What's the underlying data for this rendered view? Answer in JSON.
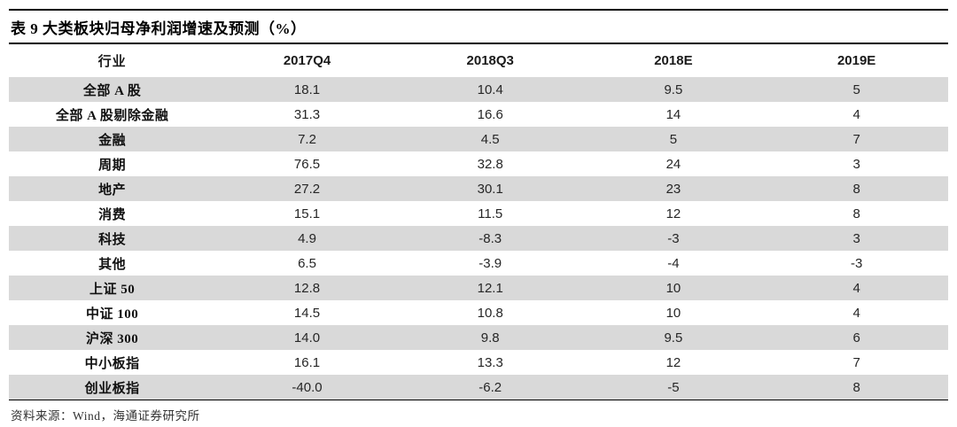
{
  "title": "表 9 大类板块归母净利润增速及预测（%）",
  "source_note": "资料来源：Wind，海通证券研究所",
  "colors": {
    "stripe": "#d9d9d9",
    "rule": "#000000",
    "text": "#262626"
  },
  "table": {
    "columns": [
      "行业",
      "2017Q4",
      "2018Q3",
      "2018E",
      "2019E"
    ],
    "rows": [
      {
        "label": "全部 A 股",
        "values": [
          "18.1",
          "10.4",
          "9.5",
          "5"
        ]
      },
      {
        "label": "全部 A 股剔除金融",
        "values": [
          "31.3",
          "16.6",
          "14",
          "4"
        ]
      },
      {
        "label": "金融",
        "values": [
          "7.2",
          "4.5",
          "5",
          "7"
        ]
      },
      {
        "label": "周期",
        "values": [
          "76.5",
          "32.8",
          "24",
          "3"
        ]
      },
      {
        "label": "地产",
        "values": [
          "27.2",
          "30.1",
          "23",
          "8"
        ]
      },
      {
        "label": "消费",
        "values": [
          "15.1",
          "11.5",
          "12",
          "8"
        ]
      },
      {
        "label": "科技",
        "values": [
          "4.9",
          "-8.3",
          "-3",
          "3"
        ]
      },
      {
        "label": "其他",
        "values": [
          "6.5",
          "-3.9",
          "-4",
          "-3"
        ]
      },
      {
        "label": "上证 50",
        "values": [
          "12.8",
          "12.1",
          "10",
          "4"
        ]
      },
      {
        "label": "中证 100",
        "values": [
          "14.5",
          "10.8",
          "10",
          "4"
        ]
      },
      {
        "label": "沪深 300",
        "values": [
          "14.0",
          "9.8",
          "9.5",
          "6"
        ]
      },
      {
        "label": "中小板指",
        "values": [
          "16.1",
          "13.3",
          "12",
          "7"
        ]
      },
      {
        "label": "创业板指",
        "values": [
          "-40.0",
          "-6.2",
          "-5",
          "8"
        ]
      }
    ]
  },
  "chart_data": {
    "type": "table",
    "title": "表 9 大类板块归母净利润增速及预测（%）",
    "columns": [
      "行业",
      "2017Q4",
      "2018Q3",
      "2018E",
      "2019E"
    ],
    "rows": [
      {
        "行业": "全部 A 股",
        "2017Q4": 18.1,
        "2018Q3": 10.4,
        "2018E": 9.5,
        "2019E": 5
      },
      {
        "行业": "全部 A 股剔除金融",
        "2017Q4": 31.3,
        "2018Q3": 16.6,
        "2018E": 14,
        "2019E": 4
      },
      {
        "行业": "金融",
        "2017Q4": 7.2,
        "2018Q3": 4.5,
        "2018E": 5,
        "2019E": 7
      },
      {
        "行业": "周期",
        "2017Q4": 76.5,
        "2018Q3": 32.8,
        "2018E": 24,
        "2019E": 3
      },
      {
        "行业": "地产",
        "2017Q4": 27.2,
        "2018Q3": 30.1,
        "2018E": 23,
        "2019E": 8
      },
      {
        "行业": "消费",
        "2017Q4": 15.1,
        "2018Q3": 11.5,
        "2018E": 12,
        "2019E": 8
      },
      {
        "行业": "科技",
        "2017Q4": 4.9,
        "2018Q3": -8.3,
        "2018E": -3,
        "2019E": 3
      },
      {
        "行业": "其他",
        "2017Q4": 6.5,
        "2018Q3": -3.9,
        "2018E": -4,
        "2019E": -3
      },
      {
        "行业": "上证 50",
        "2017Q4": 12.8,
        "2018Q3": 12.1,
        "2018E": 10,
        "2019E": 4
      },
      {
        "行业": "中证 100",
        "2017Q4": 14.5,
        "2018Q3": 10.8,
        "2018E": 10,
        "2019E": 4
      },
      {
        "行业": "沪深 300",
        "2017Q4": 14.0,
        "2018Q3": 9.8,
        "2018E": 9.5,
        "2019E": 6
      },
      {
        "行业": "中小板指",
        "2017Q4": 16.1,
        "2018Q3": 13.3,
        "2018E": 12,
        "2019E": 7
      },
      {
        "行业": "创业板指",
        "2017Q4": -40.0,
        "2018Q3": -6.2,
        "2018E": -5,
        "2019E": 8
      }
    ]
  }
}
